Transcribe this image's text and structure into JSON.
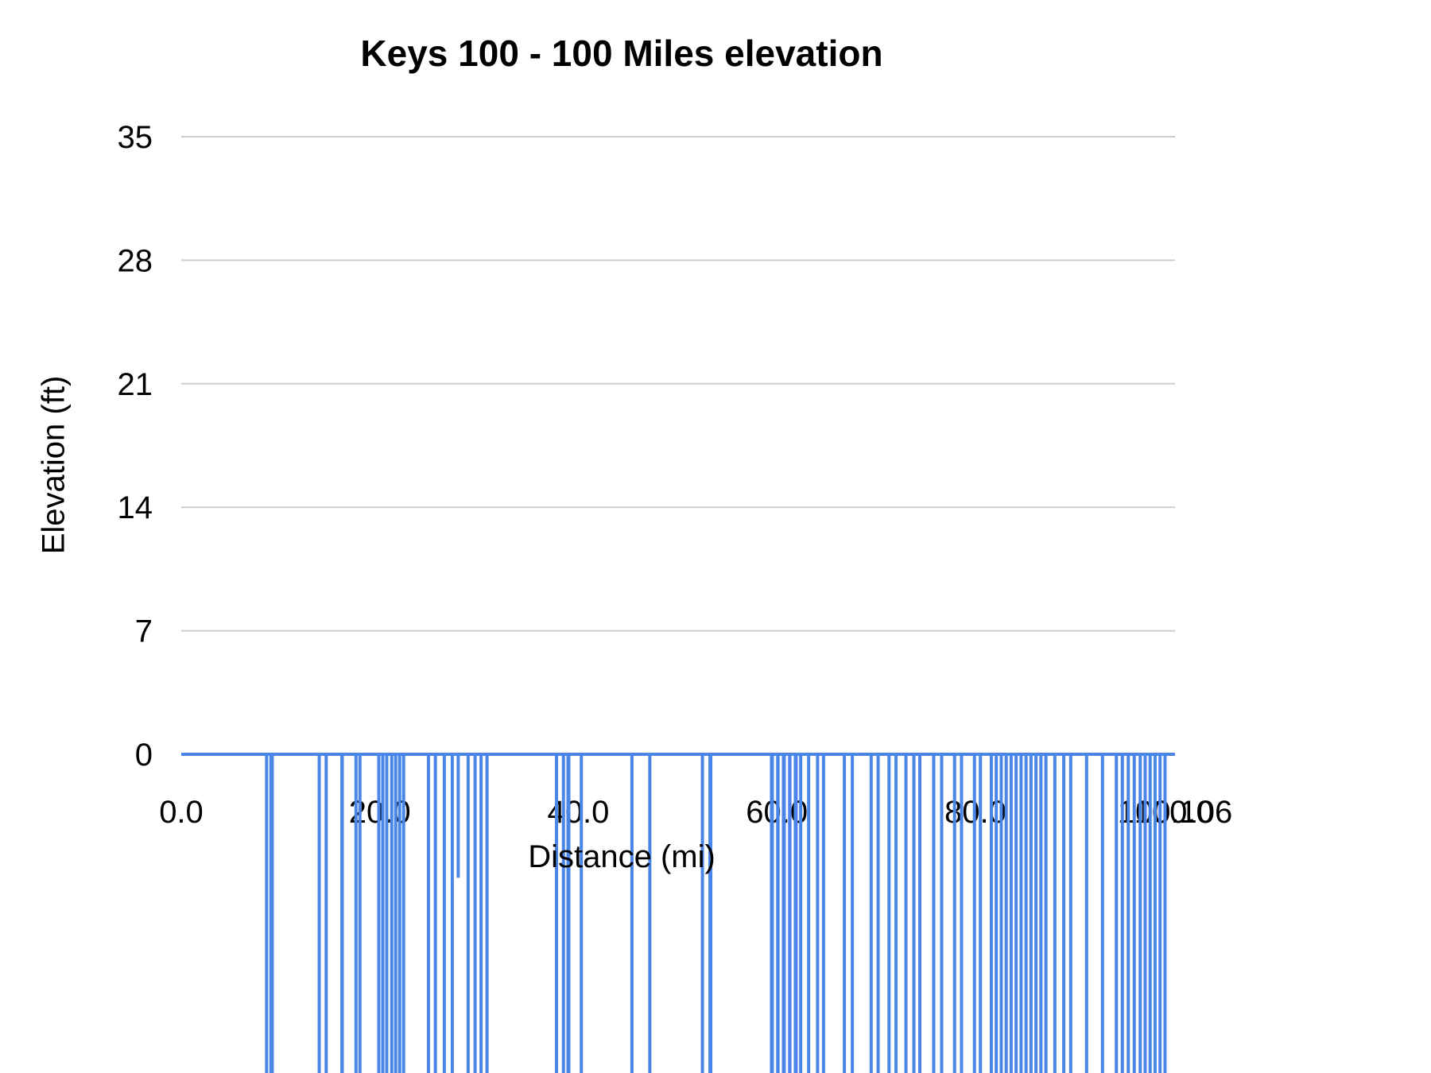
{
  "chart_data": {
    "type": "line",
    "title": "Keys 100 - 100 Miles elevation",
    "xlabel": "Distance (mi)",
    "ylabel": "Elevation (ft)",
    "series_color": "#4a86e8",
    "grid_color": "#cccccc",
    "axis_text_color": "#000000",
    "background_color": "#ffffff",
    "ylim_top": 35,
    "y_ticks": [
      0,
      7,
      14,
      21,
      28,
      35
    ],
    "xlim": [
      0,
      100.106
    ],
    "x_ticks": [
      {
        "label": "0.0",
        "x": 0
      },
      {
        "label": "20.0",
        "x": 20
      },
      {
        "label": "40.0",
        "x": 40
      },
      {
        "label": "60.0",
        "x": 60
      },
      {
        "label": "80.0",
        "x": 80
      },
      {
        "label": "100.0",
        "x": 100
      },
      {
        "label": "100.106",
        "x": 100.106
      }
    ],
    "baseline_elevation": 0,
    "spikes_note": "each spike = [distance_mi, width_mi, depth_ft]; depth -30 means dip is clipped below visible plot bottom",
    "spikes": [
      [
        8.6,
        0.25,
        -30
      ],
      [
        9.1,
        0.45,
        -30
      ],
      [
        13.9,
        0.3,
        -30
      ],
      [
        14.6,
        0.3,
        -30
      ],
      [
        16.2,
        0.35,
        -30
      ],
      [
        17.6,
        0.25,
        -30
      ],
      [
        18.0,
        0.25,
        -30
      ],
      [
        19.9,
        0.25,
        -30
      ],
      [
        20.3,
        0.25,
        -30
      ],
      [
        20.7,
        0.3,
        -30
      ],
      [
        21.2,
        0.25,
        -30
      ],
      [
        21.6,
        0.25,
        -30
      ],
      [
        22.0,
        0.25,
        -30
      ],
      [
        22.4,
        0.25,
        -30
      ],
      [
        24.9,
        0.25,
        -30
      ],
      [
        25.6,
        0.3,
        -30
      ],
      [
        26.5,
        0.25,
        -30
      ],
      [
        27.3,
        0.25,
        -30
      ],
      [
        27.9,
        0.12,
        -7
      ],
      [
        28.9,
        0.3,
        -30
      ],
      [
        29.6,
        0.25,
        -30
      ],
      [
        30.2,
        0.3,
        -30
      ],
      [
        30.8,
        0.25,
        -30
      ],
      [
        37.8,
        0.3,
        -30
      ],
      [
        38.5,
        0.25,
        -30
      ],
      [
        39.0,
        0.4,
        -30
      ],
      [
        40.3,
        0.25,
        -30
      ],
      [
        45.4,
        0.3,
        -30
      ],
      [
        47.2,
        0.3,
        -30
      ],
      [
        52.5,
        0.3,
        -30
      ],
      [
        53.3,
        0.4,
        -30
      ],
      [
        59.5,
        0.4,
        -30
      ],
      [
        60.1,
        0.35,
        -30
      ],
      [
        60.7,
        0.4,
        -30
      ],
      [
        61.3,
        0.35,
        -30
      ],
      [
        61.9,
        0.4,
        -30
      ],
      [
        62.4,
        0.3,
        -30
      ],
      [
        63.2,
        0.3,
        -30
      ],
      [
        64.1,
        0.25,
        -30
      ],
      [
        64.7,
        0.3,
        -30
      ],
      [
        66.8,
        0.25,
        -30
      ],
      [
        67.6,
        0.25,
        -30
      ],
      [
        69.5,
        0.25,
        -30
      ],
      [
        70.2,
        0.25,
        -30
      ],
      [
        71.3,
        0.3,
        -30
      ],
      [
        72.0,
        0.25,
        -30
      ],
      [
        73.0,
        0.25,
        -30
      ],
      [
        73.8,
        0.25,
        -30
      ],
      [
        74.4,
        0.3,
        -30
      ],
      [
        75.8,
        0.25,
        -30
      ],
      [
        76.6,
        0.3,
        -30
      ],
      [
        77.9,
        0.3,
        -30
      ],
      [
        78.6,
        0.25,
        -30
      ],
      [
        79.9,
        0.3,
        -30
      ],
      [
        80.5,
        0.25,
        -30
      ],
      [
        81.6,
        0.3,
        -30
      ],
      [
        82.1,
        0.25,
        -30
      ],
      [
        82.6,
        0.3,
        -30
      ],
      [
        83.1,
        0.25,
        -30
      ],
      [
        83.6,
        0.3,
        -30
      ],
      [
        84.1,
        0.25,
        -30
      ],
      [
        84.6,
        0.3,
        -30
      ],
      [
        85.1,
        0.25,
        -30
      ],
      [
        85.6,
        0.3,
        -30
      ],
      [
        86.1,
        0.25,
        -30
      ],
      [
        86.6,
        0.3,
        -30
      ],
      [
        87.1,
        0.25,
        -30
      ],
      [
        88.0,
        0.3,
        -30
      ],
      [
        88.9,
        0.25,
        -30
      ],
      [
        89.6,
        0.3,
        -30
      ],
      [
        91.2,
        0.3,
        -30
      ],
      [
        92.8,
        0.3,
        -30
      ],
      [
        94.2,
        0.3,
        -30
      ],
      [
        94.8,
        0.25,
        -30
      ],
      [
        95.4,
        0.3,
        -30
      ],
      [
        96.0,
        0.25,
        -30
      ],
      [
        96.6,
        0.3,
        -30
      ],
      [
        97.1,
        0.25,
        -30
      ],
      [
        97.6,
        0.3,
        -30
      ],
      [
        98.1,
        0.25,
        -30
      ],
      [
        98.6,
        0.3,
        -30
      ],
      [
        99.1,
        0.25,
        -30
      ]
    ]
  }
}
